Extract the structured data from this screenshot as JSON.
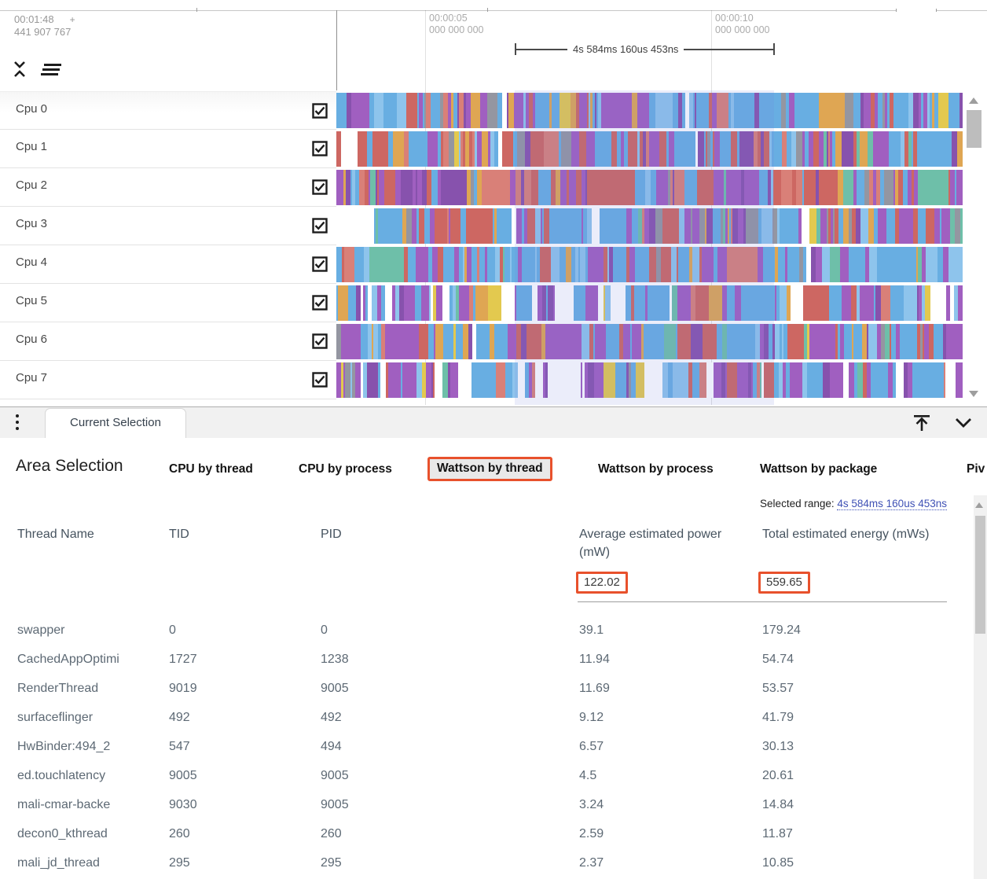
{
  "timeline": {
    "origin_time": "00:01:48",
    "origin_plus": "+",
    "origin_offset": "441 907 767",
    "gridlines": [
      {
        "time": "00:00:05",
        "ns": "000 000 000"
      },
      {
        "time": "00:00:10",
        "ns": "000 000 000"
      }
    ],
    "measurement_label": "4s 584ms 160us 453ns"
  },
  "tracks": [
    {
      "name": "Cpu 0",
      "checked": true
    },
    {
      "name": "Cpu 1",
      "checked": true
    },
    {
      "name": "Cpu 2",
      "checked": true
    },
    {
      "name": "Cpu 3",
      "checked": true
    },
    {
      "name": "Cpu 4",
      "checked": true
    },
    {
      "name": "Cpu 5",
      "checked": true
    },
    {
      "name": "Cpu 6",
      "checked": true
    },
    {
      "name": "Cpu 7",
      "checked": true
    }
  ],
  "tabbar": {
    "current_tab": "Current Selection"
  },
  "selection_panel": {
    "title": "Area Selection",
    "tabs": [
      {
        "label": "CPU by thread",
        "highlighted": false
      },
      {
        "label": "CPU by process",
        "highlighted": false
      },
      {
        "label": "Wattson by thread",
        "highlighted": true
      },
      {
        "label": "Wattson by process",
        "highlighted": false
      },
      {
        "label": "Wattson by package",
        "highlighted": false
      },
      {
        "label": "Piv",
        "highlighted": false
      }
    ],
    "selected_range_label": "Selected range:",
    "selected_range_value": "4s 584ms 160us 453ns"
  },
  "table": {
    "columns": [
      "Thread Name",
      "TID",
      "PID",
      "Average estimated power (mW)",
      "Total estimated energy (mWs)"
    ],
    "summary": {
      "avg_power": "122.02",
      "total_energy": "559.65"
    },
    "rows": [
      [
        "swapper",
        "0",
        "0",
        "39.1",
        "179.24"
      ],
      [
        "CachedAppOptimi",
        "1727",
        "1238",
        "11.94",
        "54.74"
      ],
      [
        "RenderThread",
        "9019",
        "9005",
        "11.69",
        "53.57"
      ],
      [
        "surfaceflinger",
        "492",
        "492",
        "9.12",
        "41.79"
      ],
      [
        "HwBinder:494_2",
        "547",
        "494",
        "6.57",
        "30.13"
      ],
      [
        "ed.touchlatency",
        "9005",
        "9005",
        "4.5",
        "20.61"
      ],
      [
        "mali-cmar-backe",
        "9030",
        "9005",
        "3.24",
        "14.84"
      ],
      [
        "decon0_kthread",
        "260",
        "260",
        "2.59",
        "11.87"
      ],
      [
        "mali_jd_thread",
        "295",
        "295",
        "2.37",
        "10.85"
      ]
    ]
  },
  "icons": {
    "collapse_tracks": "unfold-less-icon",
    "track_options": "menu-lines-icon",
    "panel_menu": "kebab-menu-icon",
    "dock_to_top": "vertical-align-top-icon",
    "collapse_panel": "chevron-down-icon",
    "scroll_up": "arrow-up-icon",
    "scroll_down": "arrow-down-icon"
  },
  "colors": {
    "highlight_border": "#e8512c",
    "range_link": "#3f51b5",
    "selection_overlay": "rgba(112,126,221,0.14)",
    "stripe_palette": [
      "#68aee2",
      "#8ec4ec",
      "#a05fc0",
      "#8752ad",
      "#cd6762",
      "#d98078",
      "#dfa653",
      "#6ebfa9",
      "#9496a1",
      "#e3c94f",
      "#ffffff"
    ]
  }
}
